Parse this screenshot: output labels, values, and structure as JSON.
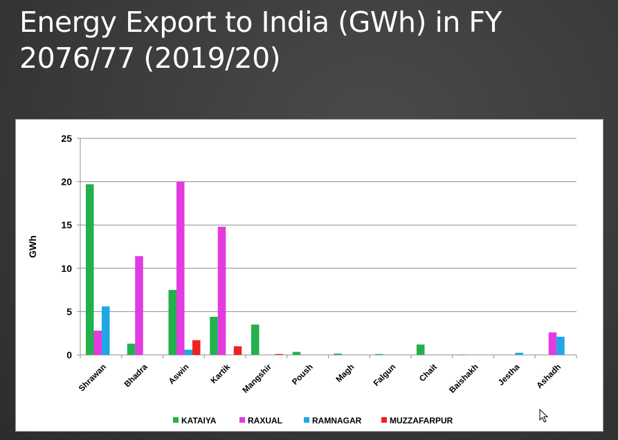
{
  "slide": {
    "title": "Energy Export to India (GWh) in FY 2076/77 (2019/20)"
  },
  "chart_data": {
    "type": "bar",
    "ylabel": "GWh",
    "xlabel": "",
    "ylim": [
      0,
      25
    ],
    "yticks": [
      0,
      5,
      10,
      15,
      20,
      25
    ],
    "grid": true,
    "legend_position": "bottom",
    "categories": [
      "Shrawan",
      "Bhadra",
      "Aswin",
      "Kartik",
      "Mangshir",
      "Poush",
      "Magh",
      "Falgun",
      "Chait",
      "Baishakh",
      "Jestha",
      "Ashadh"
    ],
    "series": [
      {
        "name": "KATAIYA",
        "color": "#22b14c",
        "values": [
          19.7,
          1.3,
          7.5,
          4.4,
          3.5,
          0.35,
          0.15,
          0.1,
          1.2,
          0.05,
          0,
          0
        ]
      },
      {
        "name": "RAXUAL",
        "color": "#e23be0",
        "values": [
          2.8,
          11.4,
          20.0,
          14.8,
          0,
          0,
          0,
          0,
          0,
          0,
          0,
          2.6
        ]
      },
      {
        "name": "RAMNAGAR",
        "color": "#1fa7e6",
        "values": [
          5.6,
          0,
          0.6,
          0,
          0,
          0,
          0,
          0,
          0,
          0,
          0.25,
          2.1
        ]
      },
      {
        "name": "MUZZAFARPUR",
        "color": "#ee2222",
        "values": [
          0,
          0,
          1.7,
          1.0,
          0.1,
          0,
          0,
          0,
          0,
          0,
          0,
          0
        ]
      }
    ]
  }
}
